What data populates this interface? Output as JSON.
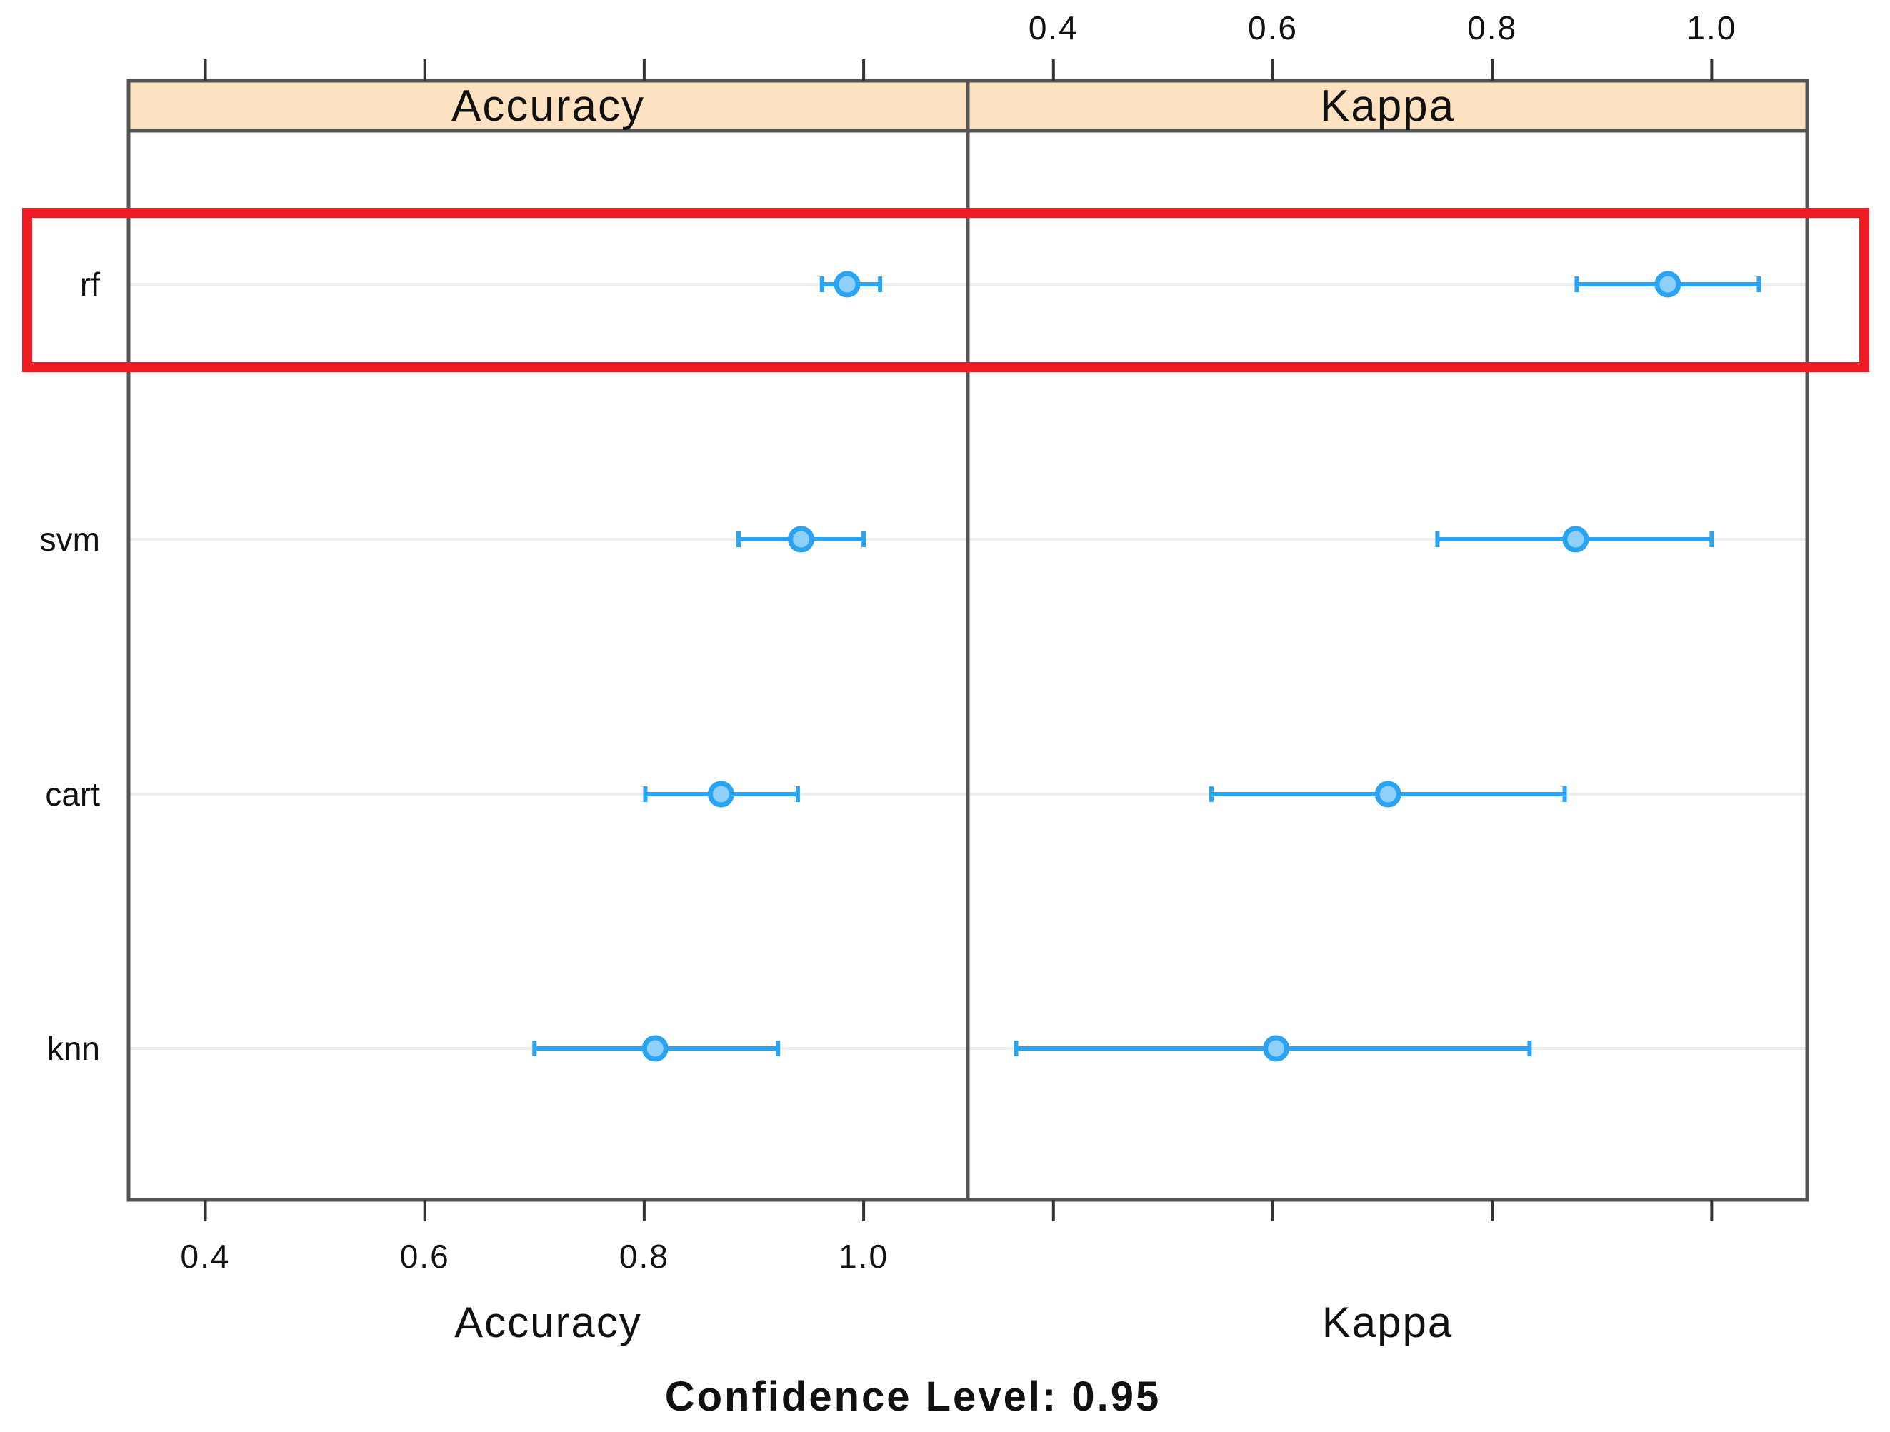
{
  "chart_data": {
    "type": "dotplot",
    "confidence_label": "Confidence Level: 0.95",
    "models": [
      "rf",
      "svm",
      "cart",
      "knn"
    ],
    "highlighted_model": "rf",
    "colors": {
      "points": "#29a3f2",
      "strip_bg": "#fce2c0",
      "highlight": "#f01c24",
      "frame": "#555555",
      "refline": "#eeeeee"
    },
    "panels": [
      {
        "metric": "Accuracy",
        "strip_label": "Accuracy",
        "xlabel": "Accuracy",
        "xlim": [
          0.33,
          1.095
        ],
        "ticks": [
          0.4,
          0.6,
          0.8,
          1.0
        ],
        "tick_labels": [
          "0.4",
          "0.6",
          "0.8",
          "1.0"
        ],
        "tick_labels_side": "bottom",
        "series": [
          {
            "model": "rf",
            "estimate": 0.985,
            "lower": 0.962,
            "upper": 1.015
          },
          {
            "model": "svm",
            "estimate": 0.943,
            "lower": 0.886,
            "upper": 1.0
          },
          {
            "model": "cart",
            "estimate": 0.87,
            "lower": 0.801,
            "upper": 0.94
          },
          {
            "model": "knn",
            "estimate": 0.81,
            "lower": 0.7,
            "upper": 0.922
          }
        ]
      },
      {
        "metric": "Kappa",
        "strip_label": "Kappa",
        "xlabel": "Kappa",
        "xlim": [
          0.322,
          1.087
        ],
        "ticks": [
          0.4,
          0.6,
          0.8,
          1.0
        ],
        "tick_labels": [
          "0.4",
          "0.6",
          "0.8",
          "1.0"
        ],
        "tick_labels_side": "top",
        "series": [
          {
            "model": "rf",
            "estimate": 0.96,
            "lower": 0.877,
            "upper": 1.043
          },
          {
            "model": "svm",
            "estimate": 0.876,
            "lower": 0.75,
            "upper": 1.0
          },
          {
            "model": "cart",
            "estimate": 0.705,
            "lower": 0.544,
            "upper": 0.866
          },
          {
            "model": "knn",
            "estimate": 0.603,
            "lower": 0.366,
            "upper": 0.834
          }
        ]
      }
    ]
  }
}
